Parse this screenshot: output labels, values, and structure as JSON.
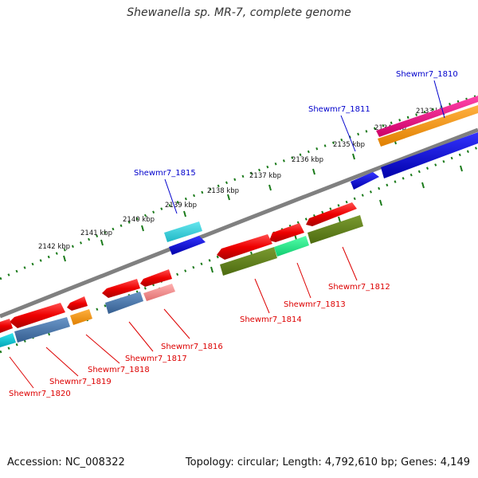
{
  "title": "Shewanella sp. MR-7, complete genome",
  "footer": {
    "accession": "Accession: NC_008322",
    "topology": "Topology: circular; Length: 4,792,610 bp; Genes: 4,149"
  },
  "colors": {
    "backbone": "#808080",
    "tick": "#1a7a1a",
    "label_forward": "#0000cc",
    "label_reverse": "#dd0000"
  },
  "kbp_labels": [
    "2133 kbp",
    "2134 kbp",
    "2135 kbp",
    "2136 kbp",
    "2137 kbp",
    "2138 kbp",
    "2139 kbp",
    "2140 kbp",
    "2141 kbp",
    "2142 kbp"
  ],
  "gene_labels": {
    "forward": [
      "Shewmr7_1810",
      "Shewmr7_1811",
      "Shewmr7_1815"
    ],
    "reverse": [
      "Shewmr7_1812",
      "Shewmr7_1813",
      "Shewmr7_1814",
      "Shewmr7_1816",
      "Shewmr7_1817",
      "Shewmr7_1818",
      "Shewmr7_1819",
      "Shewmr7_1820"
    ]
  }
}
